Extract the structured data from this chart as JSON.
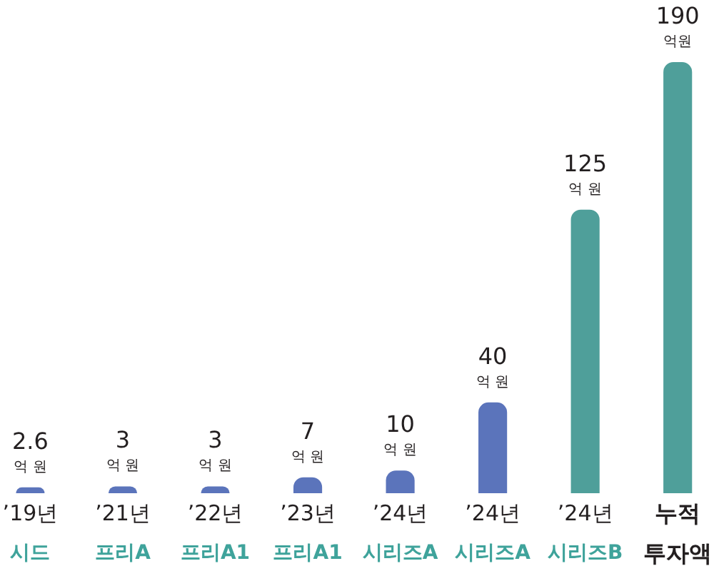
{
  "chart_data": {
    "type": "bar",
    "categories": [
      "’19년\n시드",
      "’21년\n프리A",
      "’22년\n프리A1",
      "’23년\n프리A1",
      "’24년\n시리즈A",
      "’24년\n시리즈A",
      "’24년\n시리즈B",
      "누적\n투자액"
    ],
    "values": [
      2.6,
      3,
      3,
      7,
      10,
      40,
      125,
      190
    ],
    "colors": [
      "#5b74bb",
      "#5b74bb",
      "#5b74bb",
      "#5b74bb",
      "#5b74bb",
      "#5b74bb",
      "#4f9f9a",
      "#4f9f9a"
    ],
    "value_labels": [
      "2.6\n억 원",
      "3\n억 원",
      "3\n억 원",
      "7\n억 원",
      "10\n억 원",
      "40\n억 원",
      "125\n억 원",
      "190\n억원"
    ]
  }
}
